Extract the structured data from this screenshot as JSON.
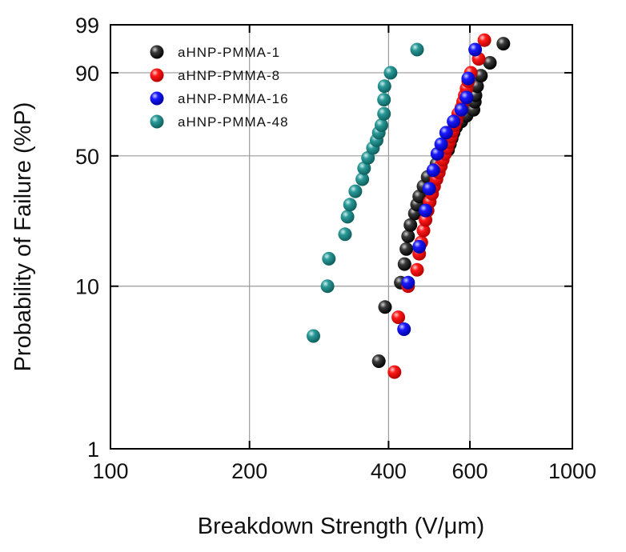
{
  "chart_data": {
    "type": "scatter",
    "xlabel": "Breakdown Strength (V/μm)",
    "ylabel": "Probability of Failure (%P)",
    "x_scale": "log",
    "y_scale": "weibull",
    "xlim": [
      100,
      1000
    ],
    "ylim": [
      1,
      99
    ],
    "x_ticks": [
      100,
      200,
      400,
      600,
      1000
    ],
    "x_tick_labels": [
      "100",
      "200",
      "400",
      "600",
      "1000"
    ],
    "y_ticks": [
      1,
      10,
      50,
      90,
      99
    ],
    "y_tick_labels": [
      "1",
      "10",
      "50",
      "90",
      "99"
    ],
    "grid": true,
    "legend_position": "top-left",
    "series": [
      {
        "name": "aHNP-PMMA-1",
        "color": "#000000",
        "points": [
          [
            381,
            3.5
          ],
          [
            393,
            7.5
          ],
          [
            425,
            10.5
          ],
          [
            433,
            13.5
          ],
          [
            437,
            16.5
          ],
          [
            441,
            19.5
          ],
          [
            446,
            22.5
          ],
          [
            456,
            26
          ],
          [
            461,
            29
          ],
          [
            466,
            32
          ],
          [
            476,
            36
          ],
          [
            486,
            40
          ],
          [
            502,
            43
          ],
          [
            508,
            46
          ],
          [
            523,
            50
          ],
          [
            538,
            53
          ],
          [
            543,
            56
          ],
          [
            548,
            59
          ],
          [
            553,
            62
          ],
          [
            560,
            65
          ],
          [
            575,
            68
          ],
          [
            590,
            71
          ],
          [
            611,
            74
          ],
          [
            615,
            78
          ],
          [
            617,
            81
          ],
          [
            622,
            85
          ],
          [
            634,
            89
          ],
          [
            663,
            93
          ],
          [
            709,
            97
          ]
        ]
      },
      {
        "name": "aHNP-PMMA-8",
        "color": "#ff0000",
        "points": [
          [
            412,
            3
          ],
          [
            420,
            6.5
          ],
          [
            441,
            10
          ],
          [
            461,
            12.5
          ],
          [
            466,
            15.5
          ],
          [
            471,
            18
          ],
          [
            476,
            21
          ],
          [
            481,
            24
          ],
          [
            486,
            27
          ],
          [
            491,
            30
          ],
          [
            497,
            33
          ],
          [
            502,
            36
          ],
          [
            508,
            39
          ],
          [
            514,
            42
          ],
          [
            519,
            45
          ],
          [
            524,
            48
          ],
          [
            530,
            51
          ],
          [
            536,
            54
          ],
          [
            541,
            57
          ],
          [
            546,
            60
          ],
          [
            551,
            63
          ],
          [
            556,
            66
          ],
          [
            561,
            69
          ],
          [
            566,
            72
          ],
          [
            575,
            75
          ],
          [
            580,
            78
          ],
          [
            585,
            81
          ],
          [
            590,
            84
          ],
          [
            595,
            87
          ],
          [
            603,
            90
          ],
          [
            627,
            94
          ],
          [
            645,
            97.5
          ]
        ]
      },
      {
        "name": "aHNP-PMMA-16",
        "color": "#0000ff",
        "points": [
          [
            432,
            5.5
          ],
          [
            441,
            10.5
          ],
          [
            466,
            17
          ],
          [
            481,
            27
          ],
          [
            490,
            35
          ],
          [
            500,
            43
          ],
          [
            510,
            51
          ],
          [
            520,
            56
          ],
          [
            533,
            62
          ],
          [
            553,
            68
          ],
          [
            575,
            74
          ],
          [
            590,
            80
          ],
          [
            595,
            88
          ],
          [
            616,
            96
          ]
        ]
      },
      {
        "name": "aHNP-PMMA-48",
        "color": "#1b8a88",
        "points": [
          [
            275,
            5
          ],
          [
            295,
            10
          ],
          [
            297,
            14.5
          ],
          [
            322,
            20
          ],
          [
            326,
            25
          ],
          [
            330,
            29
          ],
          [
            339,
            34
          ],
          [
            351,
            39
          ],
          [
            354,
            44
          ],
          [
            361,
            49
          ],
          [
            370,
            54
          ],
          [
            377,
            58
          ],
          [
            381,
            62
          ],
          [
            386,
            66
          ],
          [
            391,
            72
          ],
          [
            391,
            79
          ],
          [
            392,
            85
          ],
          [
            404,
            90
          ],
          [
            461,
            96
          ]
        ]
      }
    ]
  }
}
